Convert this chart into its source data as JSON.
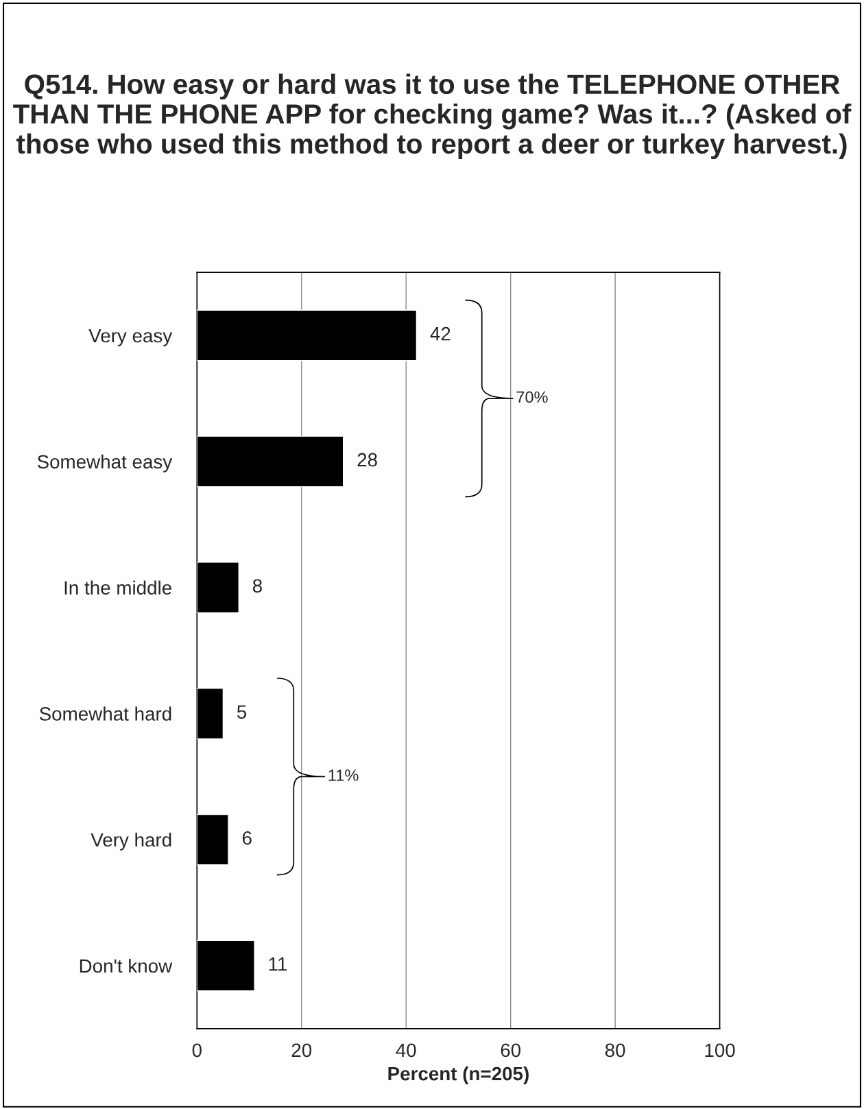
{
  "chart_data": {
    "type": "bar",
    "orientation": "horizontal",
    "title": "Q514. How easy or hard was it to use the TELEPHONE OTHER THAN THE PHONE APP for checking game? Was it...? (Asked of those who used this method to report a deer or turkey harvest.)",
    "xlabel": "Percent (n=205)",
    "categories": [
      "Very easy",
      "Somewhat easy",
      "In the middle",
      "Somewhat hard",
      "Very hard",
      "Don't know"
    ],
    "values": [
      42,
      28,
      8,
      5,
      6,
      11
    ],
    "color": "#000000",
    "data_labels": true,
    "xlim": [
      0,
      100
    ],
    "xticks": [
      0,
      20,
      40,
      60,
      80,
      100
    ],
    "grid": "x",
    "annotations": [
      "70%",
      "11%"
    ]
  }
}
